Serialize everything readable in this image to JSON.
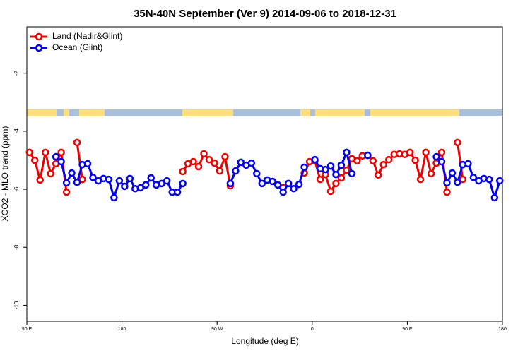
{
  "chart_data": {
    "type": "line",
    "title": "35N-40N September (Ver 9)   2014-09-06 to 2018-12-31",
    "x_label": "Longitude (deg E)",
    "y_label": "XCO2 - MLO trend (ppm)",
    "xlim": [
      90,
      540
    ],
    "xticks": [
      {
        "value": 90,
        "label": "90 E"
      },
      {
        "value": 180,
        "label": "180"
      },
      {
        "value": 270,
        "label": "90 W"
      },
      {
        "value": 360,
        "label": "0"
      },
      {
        "value": 450,
        "label": "90 E"
      },
      {
        "value": 540,
        "label": "180"
      }
    ],
    "ylim": [
      -10.55,
      -0.4
    ],
    "yticks": [
      -2,
      -4,
      -6,
      -8,
      -10
    ],
    "legend": "top-left",
    "x": [
      92.5,
      97.5,
      102.5,
      107.5,
      112.5,
      117.5,
      122.5,
      127.5,
      132.5,
      137.5,
      142.5,
      147.5,
      152.5,
      157.5,
      162.5,
      167.5,
      172.5,
      177.5,
      182.5,
      187.5,
      192.5,
      197.5,
      202.5,
      207.5,
      212.5,
      217.5,
      222.5,
      227.5,
      232.5,
      237.5,
      242.5,
      247.5,
      252.5,
      257.5,
      262.5,
      267.5,
      272.5,
      277.5,
      282.5,
      287.5,
      292.5,
      297.5,
      302.5,
      307.5,
      312.5,
      317.5,
      322.5,
      327.5,
      332.5,
      337.5,
      342.5,
      347.5,
      352.5,
      357.5,
      362.5,
      367.5,
      372.5,
      377.5,
      382.5,
      387.5,
      392.5,
      397.5,
      402.5,
      407.5,
      412.5,
      417.5,
      422.5,
      427.5,
      432.5,
      437.5,
      442.5,
      447.5,
      452.5,
      457.5,
      462.5,
      467.5,
      472.5,
      477.5,
      482.5,
      487.5,
      492.5,
      497.5,
      502.5,
      507.5,
      512.5,
      517.5,
      522.5,
      527.5,
      532.5,
      537.5
    ],
    "series": [
      {
        "name": "Land (Nadir&Glint)",
        "color": "#ee0000",
        "values": [
          -4.73,
          -5.0,
          -5.68,
          -4.73,
          -5.46,
          -5.12,
          -4.73,
          -6.1,
          null,
          -4.39,
          -5.66,
          null,
          null,
          null,
          null,
          null,
          null,
          null,
          null,
          null,
          null,
          null,
          null,
          null,
          null,
          null,
          null,
          null,
          null,
          -5.39,
          -5.12,
          -5.05,
          -5.22,
          -4.78,
          -4.98,
          -5.1,
          -5.37,
          -4.88,
          -5.88,
          null,
          null,
          null,
          null,
          null,
          null,
          null,
          null,
          null,
          -5.95,
          null,
          null,
          null,
          -5.44,
          -5.05,
          -5.02,
          -5.66,
          -5.49,
          -6.07,
          -5.8,
          -5.61,
          -5.34,
          -4.95,
          -5.02,
          -4.85,
          -4.83,
          -5.02,
          -5.51,
          -5.15,
          -4.98,
          -4.8,
          -4.78,
          -4.8,
          -4.73,
          -5.0,
          -5.66,
          -4.73,
          -5.46,
          -5.1,
          -4.73,
          -6.1,
          null,
          -4.39,
          -5.66,
          null,
          null,
          null,
          null,
          null,
          null,
          null
        ]
      },
      {
        "name": "Ocean (Glint)",
        "color": "#0000ee",
        "values": [
          null,
          null,
          null,
          null,
          null,
          -4.88,
          -5.05,
          -5.78,
          -5.44,
          -5.76,
          -5.15,
          -5.12,
          -5.59,
          -5.71,
          -5.63,
          -5.66,
          -6.29,
          -5.71,
          -5.9,
          -5.63,
          -5.98,
          -5.95,
          -5.85,
          -5.61,
          -5.85,
          -5.8,
          -5.71,
          -6.1,
          -6.1,
          -5.8,
          null,
          null,
          null,
          null,
          null,
          null,
          null,
          null,
          -5.8,
          -5.37,
          -5.07,
          -5.17,
          -5.1,
          -5.46,
          -5.8,
          -5.68,
          -5.73,
          -5.85,
          -6.1,
          -5.8,
          -5.98,
          -5.83,
          -5.24,
          null,
          -4.98,
          -5.29,
          -5.32,
          -5.2,
          -5.49,
          -5.17,
          -4.73,
          -5.46,
          null,
          null,
          -4.83,
          null,
          null,
          null,
          null,
          null,
          null,
          null,
          null,
          null,
          null,
          null,
          null,
          -4.88,
          -5.05,
          -5.78,
          -5.44,
          -5.76,
          -5.15,
          -5.12,
          -5.59,
          -5.71,
          -5.63,
          -5.66,
          -6.29,
          -5.71
        ]
      }
    ]
  }
}
